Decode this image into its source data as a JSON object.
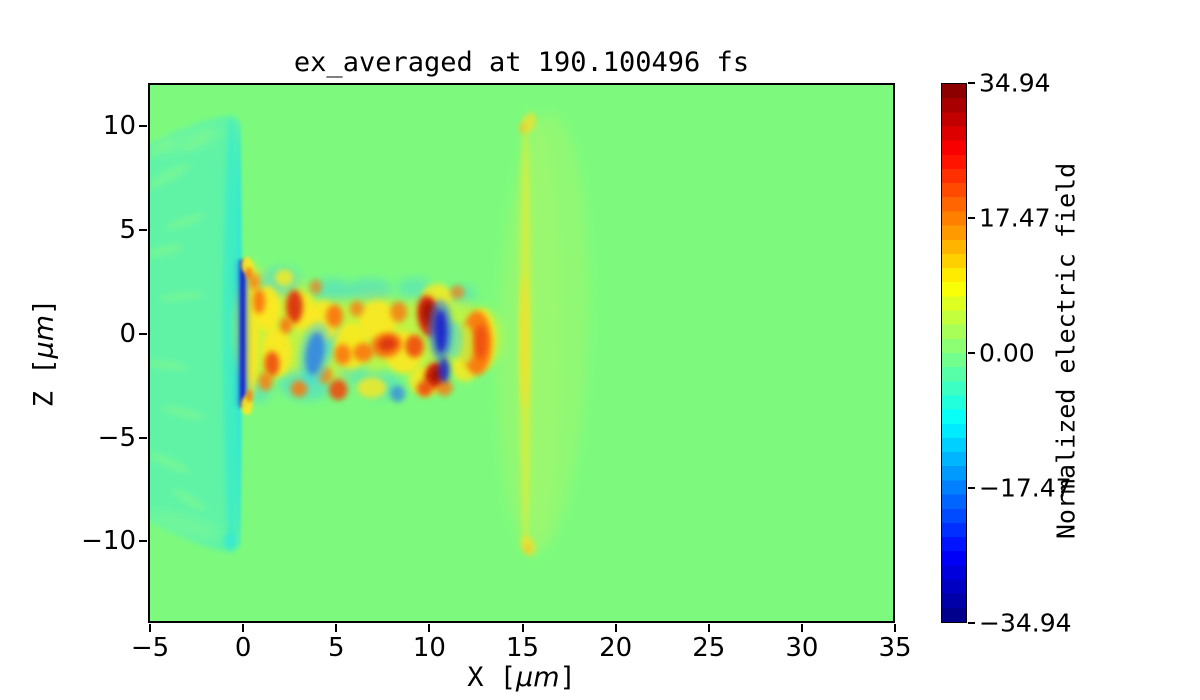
{
  "palette": {
    "bg": "#7dfa7d",
    "wedge": "#5df2a9",
    "wedgeStreak": "#86f98c",
    "strip": "#3becc8",
    "stripEdge": "#2ee7d8",
    "navy": "#1420cf",
    "blue": "#2f7fe8",
    "cyan": "#41d6e2",
    "yellowGreen": "#c9f23c",
    "yellow": "#ffe81c",
    "orange": "#f9780f",
    "redOrange": "#ee4a08",
    "red": "#d92908",
    "darkRed": "#a30c00",
    "bandFaint": "#a3f86b",
    "bandLine": "#d9ee3b",
    "bandLineBright": "#f2e129",
    "tipDot": "#f0bf2a",
    "frame": "#000000",
    "text": "#000000"
  },
  "chart_data": {
    "type": "heatmap",
    "title": "ex_averaged at 190.100496 fs",
    "xlabel": {
      "pre": "X [",
      "italic": "μm",
      "post": "]"
    },
    "ylabel": {
      "pre": "Z [",
      "italic": "μm",
      "post": "]"
    },
    "colorbar_label": "Normalized electric field",
    "colormap": "jet",
    "colorbar_levels": 38,
    "xlim": [
      -5.11,
      35.0
    ],
    "zlim": [
      -13.93,
      12.07
    ],
    "clim": [
      -34.94,
      34.94
    ],
    "x_ticks": [
      {
        "v": -5,
        "label": "−5"
      },
      {
        "v": 0,
        "label": "0"
      },
      {
        "v": 5,
        "label": "5"
      },
      {
        "v": 10,
        "label": "10"
      },
      {
        "v": 15,
        "label": "15"
      },
      {
        "v": 20,
        "label": "20"
      },
      {
        "v": 25,
        "label": "25"
      },
      {
        "v": 30,
        "label": "30"
      },
      {
        "v": 35,
        "label": "35"
      }
    ],
    "z_ticks": [
      {
        "v": 10,
        "label": "10"
      },
      {
        "v": 5,
        "label": "5"
      },
      {
        "v": 0,
        "label": "0"
      },
      {
        "v": -5,
        "label": "−5"
      },
      {
        "v": -10,
        "label": "−10"
      }
    ],
    "colorbar_ticks": [
      {
        "v": 34.94,
        "label": "34.94"
      },
      {
        "v": 17.47,
        "label": "17.47"
      },
      {
        "v": 0,
        "label": "0.00"
      },
      {
        "v": -17.47,
        "label": "−17.47"
      },
      {
        "v": -34.94,
        "label": "−34.94"
      }
    ],
    "background_value": 0.0,
    "features": [
      [
        "p",
        [
          [
            -5.2,
            9.05
          ],
          [
            -3.6,
            9.75
          ],
          [
            -2.2,
            10.2
          ],
          [
            -1.1,
            10.45
          ],
          [
            -0.45,
            10.45
          ],
          [
            -0.22,
            10.1
          ],
          [
            -0.22,
            -10.1
          ],
          [
            -0.5,
            -10.45
          ],
          [
            -1.3,
            -10.45
          ],
          [
            -2.6,
            -10.05
          ],
          [
            -4.0,
            -9.5
          ],
          [
            -5.2,
            -8.95
          ]
        ],
        "wedge",
        0.92,
        "m"
      ],
      [
        "e",
        -3.0,
        9.3,
        2.0,
        0.5,
        -15,
        "wedgeStreak",
        0.4,
        "s"
      ],
      [
        "e",
        -3.2,
        -9.2,
        2.0,
        0.5,
        15,
        "wedgeStreak",
        0.4,
        "s"
      ],
      [
        "e",
        -4.0,
        7.6,
        1.3,
        0.28,
        -28,
        "wedgeStreak",
        0.5,
        "m"
      ],
      [
        "e",
        -3.1,
        5.4,
        1.1,
        0.22,
        -18,
        "wedgeStreak",
        0.5,
        "m"
      ],
      [
        "e",
        -4.2,
        4.0,
        1.0,
        0.25,
        -12,
        "wedgeStreak",
        0.5,
        "m"
      ],
      [
        "e",
        -3.3,
        1.8,
        1.2,
        0.2,
        -6,
        "wedgeStreak",
        0.5,
        "m"
      ],
      [
        "e",
        -4.1,
        -1.5,
        1.1,
        0.22,
        8,
        "wedgeStreak",
        0.5,
        "m"
      ],
      [
        "e",
        -3.2,
        -3.8,
        1.2,
        0.22,
        14,
        "wedgeStreak",
        0.5,
        "m"
      ],
      [
        "e",
        -4.0,
        -6.2,
        1.2,
        0.25,
        24,
        "wedgeStreak",
        0.5,
        "m"
      ],
      [
        "e",
        -2.9,
        -8.0,
        1.0,
        0.25,
        32,
        "wedgeStreak",
        0.5,
        "m"
      ],
      [
        "e",
        -4.5,
        8.9,
        0.8,
        0.2,
        -30,
        "wedgeStreak",
        0.45,
        "m"
      ],
      [
        "e",
        -2.4,
        9.3,
        0.9,
        0.18,
        -35,
        "wedgeStreak",
        0.45,
        "m"
      ],
      [
        "e",
        -0.62,
        0,
        0.45,
        10.5,
        0,
        "strip",
        0.85,
        "m"
      ],
      [
        "e",
        -0.24,
        0,
        0.14,
        10.3,
        0,
        "stripEdge",
        0.9,
        "f"
      ],
      [
        "e",
        -0.7,
        -10.0,
        0.35,
        0.4,
        0,
        "stripEdge",
        0.7,
        "m"
      ],
      [
        "e",
        16.1,
        0.0,
        2.4,
        10.6,
        2,
        "bandFaint",
        0.5,
        "s"
      ],
      [
        "e",
        15.9,
        0.0,
        1.1,
        10.0,
        0,
        "bandFaint",
        0.55,
        "s"
      ],
      [
        "e",
        15.15,
        0.0,
        0.3,
        10.4,
        0,
        "bandLine",
        0.8,
        "m"
      ],
      [
        "e",
        15.1,
        -0.4,
        0.22,
        3.2,
        0,
        "bandLineBright",
        0.85,
        "m"
      ],
      [
        "e",
        15.35,
        10.15,
        0.35,
        0.5,
        20,
        "bandLineBright",
        0.8,
        "m"
      ],
      [
        "e",
        15.3,
        -10.2,
        0.35,
        0.5,
        -20,
        "bandLineBright",
        0.8,
        "m"
      ],
      [
        "e",
        15.0,
        9.9,
        0.18,
        0.25,
        0,
        "tipDot",
        0.7,
        "m"
      ],
      [
        "e",
        15.25,
        -10.35,
        0.18,
        0.22,
        0,
        "tipDot",
        0.7,
        "m"
      ],
      [
        "e",
        0.9,
        0.2,
        1.3,
        2.9,
        0,
        "yellowGreen",
        0.85,
        "s"
      ],
      [
        "e",
        2.6,
        0.3,
        1.5,
        2.4,
        0,
        "yellowGreen",
        0.85,
        "s"
      ],
      [
        "e",
        4.8,
        -0.3,
        1.7,
        2.1,
        0,
        "yellowGreen",
        0.85,
        "s"
      ],
      [
        "e",
        7.0,
        0.1,
        1.7,
        2.0,
        0,
        "yellowGreen",
        0.8,
        "s"
      ],
      [
        "e",
        9.3,
        -0.2,
        1.6,
        1.9,
        0,
        "yellowGreen",
        0.8,
        "s"
      ],
      [
        "e",
        11.4,
        0.1,
        1.4,
        1.7,
        0,
        "yellowGreen",
        0.8,
        "s"
      ],
      [
        "e",
        12.9,
        -0.2,
        1.0,
        1.4,
        0,
        "yellowGreen",
        0.8,
        "s"
      ],
      [
        "e",
        1.9,
        2.5,
        1.2,
        0.7,
        -8,
        "cyan",
        0.55,
        "s"
      ],
      [
        "e",
        3.3,
        -2.5,
        1.4,
        0.7,
        6,
        "cyan",
        0.55,
        "s"
      ],
      [
        "e",
        4.8,
        2.1,
        1.0,
        0.55,
        0,
        "cyan",
        0.5,
        "s"
      ],
      [
        "e",
        6.8,
        2.1,
        1.2,
        0.55,
        0,
        "cyan",
        0.5,
        "s"
      ],
      [
        "e",
        7.3,
        -2.5,
        1.2,
        0.6,
        0,
        "cyan",
        0.5,
        "s"
      ],
      [
        "e",
        9.2,
        2.2,
        0.9,
        0.5,
        0,
        "cyan",
        0.45,
        "s"
      ],
      [
        "e",
        0.7,
        -2.8,
        0.8,
        0.5,
        0,
        "cyan",
        0.5,
        "s"
      ],
      [
        "e",
        4.6,
        -0.2,
        0.6,
        1.0,
        0,
        "cyan",
        0.5,
        "s"
      ],
      [
        "e",
        11.8,
        1.9,
        0.7,
        0.45,
        0,
        "cyan",
        0.45,
        "s"
      ],
      [
        "e",
        5.9,
        -1.9,
        0.8,
        0.5,
        0,
        "cyan",
        0.4,
        "s"
      ],
      [
        "e",
        0.45,
        0.6,
        0.4,
        2.9,
        0,
        "yellow",
        0.9,
        "m"
      ],
      [
        "e",
        1.3,
        1.2,
        0.7,
        1.1,
        0,
        "yellow",
        0.9,
        "m"
      ],
      [
        "e",
        1.8,
        -0.9,
        0.8,
        1.2,
        0,
        "yellow",
        0.85,
        "m"
      ],
      [
        "e",
        3.1,
        1.1,
        0.8,
        0.9,
        0,
        "yellow",
        0.85,
        "m"
      ],
      [
        "e",
        4.3,
        0.6,
        0.8,
        1.0,
        0,
        "yellow",
        0.85,
        "m"
      ],
      [
        "e",
        5.8,
        -0.6,
        0.9,
        1.1,
        0,
        "yellow",
        0.8,
        "m"
      ],
      [
        "e",
        7.2,
        0.6,
        1.0,
        1.0,
        0,
        "yellow",
        0.85,
        "m"
      ],
      [
        "e",
        8.6,
        -0.9,
        1.0,
        1.0,
        0,
        "yellow",
        0.85,
        "m"
      ],
      [
        "e",
        9.8,
        -2.3,
        0.9,
        0.7,
        0,
        "yellow",
        0.8,
        "m"
      ],
      [
        "e",
        10.4,
        1.8,
        0.8,
        0.6,
        0,
        "yellow",
        0.8,
        "m"
      ],
      [
        "e",
        12.8,
        -0.3,
        0.7,
        1.5,
        0,
        "yellow",
        0.9,
        "m"
      ],
      [
        "e",
        11.9,
        -1.7,
        0.7,
        0.6,
        0,
        "yellow",
        0.8,
        "m"
      ],
      [
        "e",
        6.9,
        -2.6,
        0.8,
        0.5,
        0,
        "yellow",
        0.8,
        "m"
      ],
      [
        "e",
        2.2,
        2.7,
        0.5,
        0.4,
        0,
        "yellow",
        0.8,
        "m"
      ],
      [
        "e",
        0.35,
        -2.0,
        0.3,
        1.2,
        0,
        "yellow",
        0.85,
        "m"
      ],
      [
        "e",
        0.85,
        1.55,
        0.33,
        0.6,
        0,
        "orange",
        0.95,
        "m"
      ],
      [
        "e",
        1.55,
        -1.45,
        0.4,
        0.6,
        0,
        "redOrange",
        0.9,
        "m"
      ],
      [
        "e",
        2.75,
        1.3,
        0.45,
        0.8,
        0,
        "red",
        0.9,
        "m"
      ],
      [
        "e",
        2.3,
        0.4,
        0.33,
        0.4,
        0,
        "orange",
        0.9,
        "m"
      ],
      [
        "e",
        3.0,
        -2.65,
        0.45,
        0.4,
        0,
        "orange",
        0.85,
        "m"
      ],
      [
        "e",
        4.9,
        0.85,
        0.45,
        0.55,
        0,
        "orange",
        0.95,
        "m"
      ],
      [
        "e",
        5.35,
        -1.0,
        0.45,
        0.5,
        0,
        "orange",
        0.9,
        "m"
      ],
      [
        "e",
        5.1,
        -2.7,
        0.5,
        0.5,
        0,
        "redOrange",
        0.9,
        "m"
      ],
      [
        "e",
        6.45,
        -0.9,
        0.55,
        0.45,
        0,
        "orange",
        0.9,
        "m"
      ],
      [
        "e",
        6.1,
        1.2,
        0.38,
        0.38,
        0,
        "orange",
        0.75,
        "m"
      ],
      [
        "e",
        7.7,
        -0.55,
        0.85,
        0.6,
        -12,
        "orange",
        0.95,
        "m"
      ],
      [
        "e",
        8.35,
        1.05,
        0.45,
        0.5,
        0,
        "orange",
        0.8,
        "m"
      ],
      [
        "e",
        9.2,
        -0.6,
        0.5,
        0.55,
        0,
        "redOrange",
        0.9,
        "m"
      ],
      [
        "e",
        11.5,
        2.0,
        0.38,
        0.33,
        0,
        "orange",
        0.7,
        "m"
      ],
      [
        "e",
        1.2,
        -2.3,
        0.38,
        0.45,
        0,
        "orange",
        0.8,
        "m"
      ],
      [
        "e",
        3.9,
        2.25,
        0.33,
        0.36,
        0,
        "orange",
        0.7,
        "m"
      ],
      [
        "e",
        4.4,
        -2.0,
        0.4,
        0.4,
        0,
        "orange",
        0.75,
        "m"
      ],
      [
        "e",
        10.8,
        -2.6,
        0.45,
        0.4,
        0,
        "orange",
        0.8,
        "m"
      ],
      [
        "e",
        0.6,
        2.5,
        0.3,
        0.4,
        0,
        "orange",
        0.75,
        "m"
      ],
      [
        "e",
        7.75,
        -0.5,
        0.5,
        0.33,
        -12,
        "red",
        0.85,
        "m"
      ],
      [
        "e",
        9.95,
        0.85,
        0.6,
        1.0,
        -8,
        "red",
        0.97,
        "m"
      ],
      [
        "e",
        10.0,
        0.95,
        0.38,
        0.6,
        -8,
        "darkRed",
        0.95,
        "m"
      ],
      [
        "e",
        10.25,
        -2.0,
        0.5,
        0.65,
        15,
        "red",
        0.95,
        "m"
      ],
      [
        "e",
        10.3,
        -2.0,
        0.3,
        0.4,
        15,
        "darkRed",
        0.85,
        "m"
      ],
      [
        "e",
        9.75,
        -2.65,
        0.42,
        0.38,
        0,
        "redOrange",
        0.9,
        "m"
      ],
      [
        "e",
        12.55,
        -0.45,
        0.8,
        1.55,
        0,
        "orange",
        0.95,
        "m"
      ],
      [
        "e",
        11.95,
        -0.5,
        0.45,
        0.95,
        0,
        "yellowGreen",
        0.85,
        "m"
      ],
      [
        "e",
        12.75,
        -0.4,
        0.33,
        0.85,
        0,
        "redOrange",
        0.85,
        "m"
      ],
      [
        "e",
        3.85,
        -0.95,
        0.85,
        1.5,
        8,
        "cyan",
        0.5,
        "m"
      ],
      [
        "e",
        3.85,
        -0.95,
        0.5,
        1.05,
        8,
        "blue",
        0.85,
        "m"
      ],
      [
        "e",
        11.3,
        -0.3,
        0.5,
        0.9,
        0,
        "cyan",
        0.5,
        "m"
      ],
      [
        "e",
        10.6,
        0.15,
        0.65,
        1.5,
        0,
        "blue",
        0.6,
        "m"
      ],
      [
        "e",
        10.62,
        0.1,
        0.33,
        1.05,
        0,
        "navy",
        0.92,
        "m"
      ],
      [
        "e",
        10.78,
        -1.75,
        0.3,
        0.6,
        0,
        "navy",
        0.85,
        "m"
      ],
      [
        "e",
        8.3,
        -2.9,
        0.4,
        0.4,
        0,
        "blue",
        0.7,
        "m"
      ],
      [
        "r",
        -0.37,
        -3.5,
        0.33,
        3.5,
        "blue",
        0.45,
        "m"
      ],
      [
        "r",
        -0.18,
        -3.55,
        0.12,
        3.55,
        "navy",
        0.95,
        "f"
      ],
      [
        "e",
        0.2,
        3.3,
        0.3,
        0.4,
        0,
        "yellow",
        0.9,
        "f"
      ],
      [
        "e",
        0.2,
        -3.45,
        0.32,
        0.45,
        0,
        "yellow",
        0.9,
        "f"
      ],
      [
        "e",
        0.3,
        2.9,
        0.2,
        0.3,
        0,
        "orange",
        0.75,
        "f"
      ],
      [
        "e",
        0.32,
        -3.0,
        0.2,
        0.3,
        0,
        "orange",
        0.7,
        "f"
      ]
    ]
  }
}
